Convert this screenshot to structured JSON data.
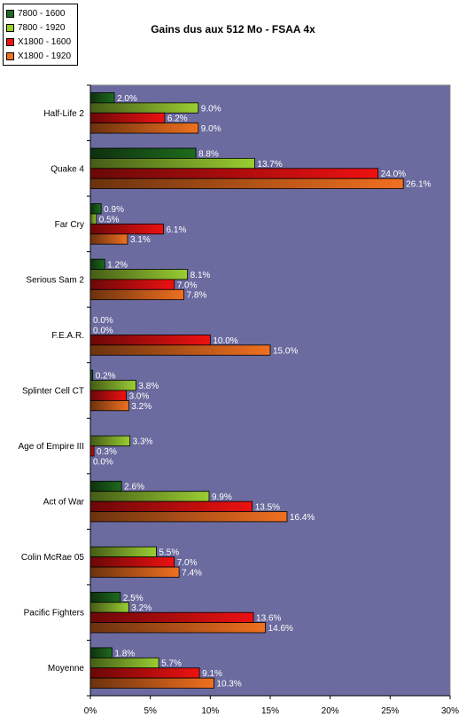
{
  "chart_data": {
    "type": "bar",
    "orientation": "horizontal",
    "title": "Gains dus aux 512 Mo - FSAA 4x",
    "categories": [
      "Half-Life 2",
      "Quake 4",
      "Far Cry",
      "Serious Sam 2",
      "F.E.A.R.",
      "Splinter Cell CT",
      "Age of Empire III",
      "Act of War",
      "Colin McRae 05",
      "Pacific Fighters",
      "Moyenne"
    ],
    "series": [
      {
        "name": "7800 - 1600",
        "color": "#1e6b1e",
        "values": [
          2.0,
          8.8,
          0.9,
          1.2,
          0.0,
          0.2,
          0.0,
          2.6,
          0.0,
          2.5,
          1.8
        ],
        "labels": [
          "2.0%",
          "8.8%",
          "0.9%",
          "1.2%",
          "0.0%",
          "0.2%",
          "",
          "2.6%",
          "",
          "2.5%",
          "1.8%"
        ]
      },
      {
        "name": "7800 - 1920",
        "color": "#9acd32",
        "values": [
          9.0,
          13.7,
          0.5,
          8.1,
          0.0,
          3.8,
          3.3,
          9.9,
          5.5,
          3.2,
          5.7
        ],
        "labels": [
          "9.0%",
          "13.7%",
          "0.5%",
          "8.1%",
          "0.0%",
          "3.8%",
          "3.3%",
          "9.9%",
          "5.5%",
          "3.2%",
          "5.7%"
        ]
      },
      {
        "name": "X1800 - 1600",
        "color": "#ee1111",
        "values": [
          6.2,
          24.0,
          6.1,
          7.0,
          10.0,
          3.0,
          0.3,
          13.5,
          7.0,
          13.6,
          9.1
        ],
        "labels": [
          "6.2%",
          "24.0%",
          "6.1%",
          "7.0%",
          "10.0%",
          "3.0%",
          "0.3%",
          "13.5%",
          "7.0%",
          "13.6%",
          "9.1%"
        ]
      },
      {
        "name": "X1800 - 1920",
        "color": "#f07020",
        "values": [
          9.0,
          26.1,
          3.1,
          7.8,
          15.0,
          3.2,
          0.0,
          16.4,
          7.4,
          14.6,
          10.3
        ],
        "labels": [
          "9.0%",
          "26.1%",
          "3.1%",
          "7.8%",
          "15.0%",
          "3.2%",
          "0.0%",
          "16.4%",
          "7.4%",
          "14.6%",
          "10.3%"
        ]
      }
    ],
    "x_ticks": [
      "0%",
      "5%",
      "10%",
      "15%",
      "20%",
      "25%",
      "30%"
    ],
    "xlim": [
      0,
      30
    ],
    "plot_background": "#6b6b9f",
    "legend_position": "top-left",
    "grid": false
  }
}
